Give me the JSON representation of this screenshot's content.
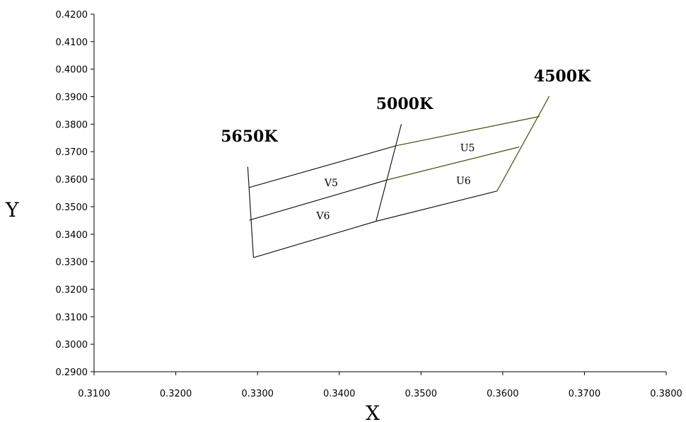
{
  "chart_data": {
    "type": "line",
    "xlabel": "X",
    "ylabel": "Y",
    "xlim": [
      0.31,
      0.38
    ],
    "ylim": [
      0.29,
      0.42
    ],
    "x_ticks": [
      "0.3100",
      "0.3200",
      "0.3300",
      "0.3400",
      "0.3500",
      "0.3600",
      "0.3700",
      "0.3800"
    ],
    "y_ticks": [
      "0.2900",
      "0.3000",
      "0.3100",
      "0.3200",
      "0.3300",
      "0.3400",
      "0.3500",
      "0.3600",
      "0.3700",
      "0.3800",
      "0.3900",
      "0.4000",
      "0.4100",
      "0.4200"
    ],
    "grid": false,
    "series": [
      {
        "role": "cct-5650K",
        "points": [
          [
            0.3288,
            0.3645
          ],
          [
            0.3295,
            0.3315
          ]
        ]
      },
      {
        "role": "cct-5000K",
        "points": [
          [
            0.3476,
            0.38
          ],
          [
            0.3445,
            0.3447
          ]
        ]
      },
      {
        "role": "cct-4500K",
        "points": [
          [
            0.3657,
            0.3902
          ],
          [
            0.3593,
            0.3557
          ]
        ]
      },
      {
        "role": "top",
        "points": [
          [
            0.329,
            0.357
          ],
          [
            0.347,
            0.3722
          ],
          [
            0.3645,
            0.3828
          ]
        ]
      },
      {
        "role": "middle",
        "points": [
          [
            0.329,
            0.3451
          ],
          [
            0.3458,
            0.3597
          ],
          [
            0.362,
            0.3717
          ]
        ]
      },
      {
        "role": "bottom",
        "points": [
          [
            0.3295,
            0.3315
          ],
          [
            0.3445,
            0.3447
          ],
          [
            0.3593,
            0.3557
          ]
        ]
      }
    ],
    "cct_labels": [
      {
        "text": "5650K",
        "x": 0.3255,
        "y": 0.3736
      },
      {
        "text": "5000K",
        "x": 0.3445,
        "y": 0.3855
      },
      {
        "text": "4500K",
        "x": 0.3638,
        "y": 0.3955
      }
    ],
    "region_labels": [
      {
        "text": "V5",
        "x": 0.3382,
        "y": 0.3575
      },
      {
        "text": "V6",
        "x": 0.3372,
        "y": 0.3455
      },
      {
        "text": "U5",
        "x": 0.3548,
        "y": 0.3702
      },
      {
        "text": "U6",
        "x": 0.3543,
        "y": 0.3582
      }
    ]
  }
}
